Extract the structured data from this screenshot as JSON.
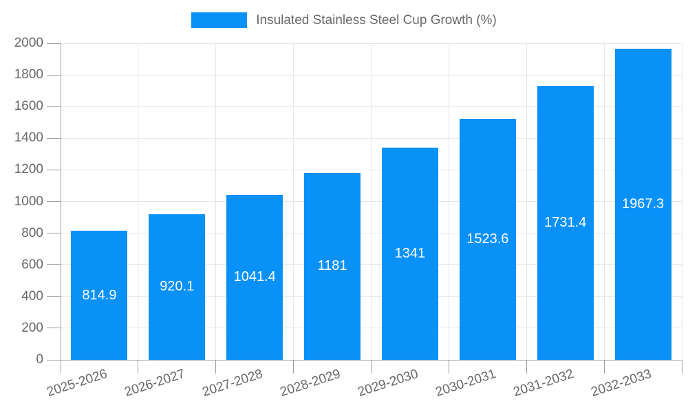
{
  "colors": {
    "bar": "#0991f8",
    "grid": "#e6e6e6",
    "axis": "#9e9e9e",
    "tick_text": "#686868",
    "value_text": "#ffffff"
  },
  "chart_data": {
    "type": "bar",
    "title": "",
    "legend": "Insulated Stainless Steel Cup Growth (%)",
    "legend_position": "top",
    "categories": [
      "2025-2026",
      "2026-2027",
      "2027-2028",
      "2028-2029",
      "2029-2030",
      "2030-2031",
      "2031-2032",
      "2032-2033"
    ],
    "values": [
      814.9,
      920.1,
      1041.4,
      1181,
      1341,
      1523.6,
      1731.4,
      1967.3
    ],
    "value_labels": [
      "814.9",
      "920.1",
      "1041.4",
      "1181",
      "1341",
      "1523.6",
      "1731.4",
      "1967.3"
    ],
    "xlabel": "",
    "ylabel": "",
    "ylim": [
      0,
      2000
    ],
    "ytick_step": 200,
    "yticks": [
      0,
      200,
      400,
      600,
      800,
      1000,
      1200,
      1400,
      1600,
      1800,
      2000
    ],
    "grid": true,
    "bar_label_position": "center"
  }
}
